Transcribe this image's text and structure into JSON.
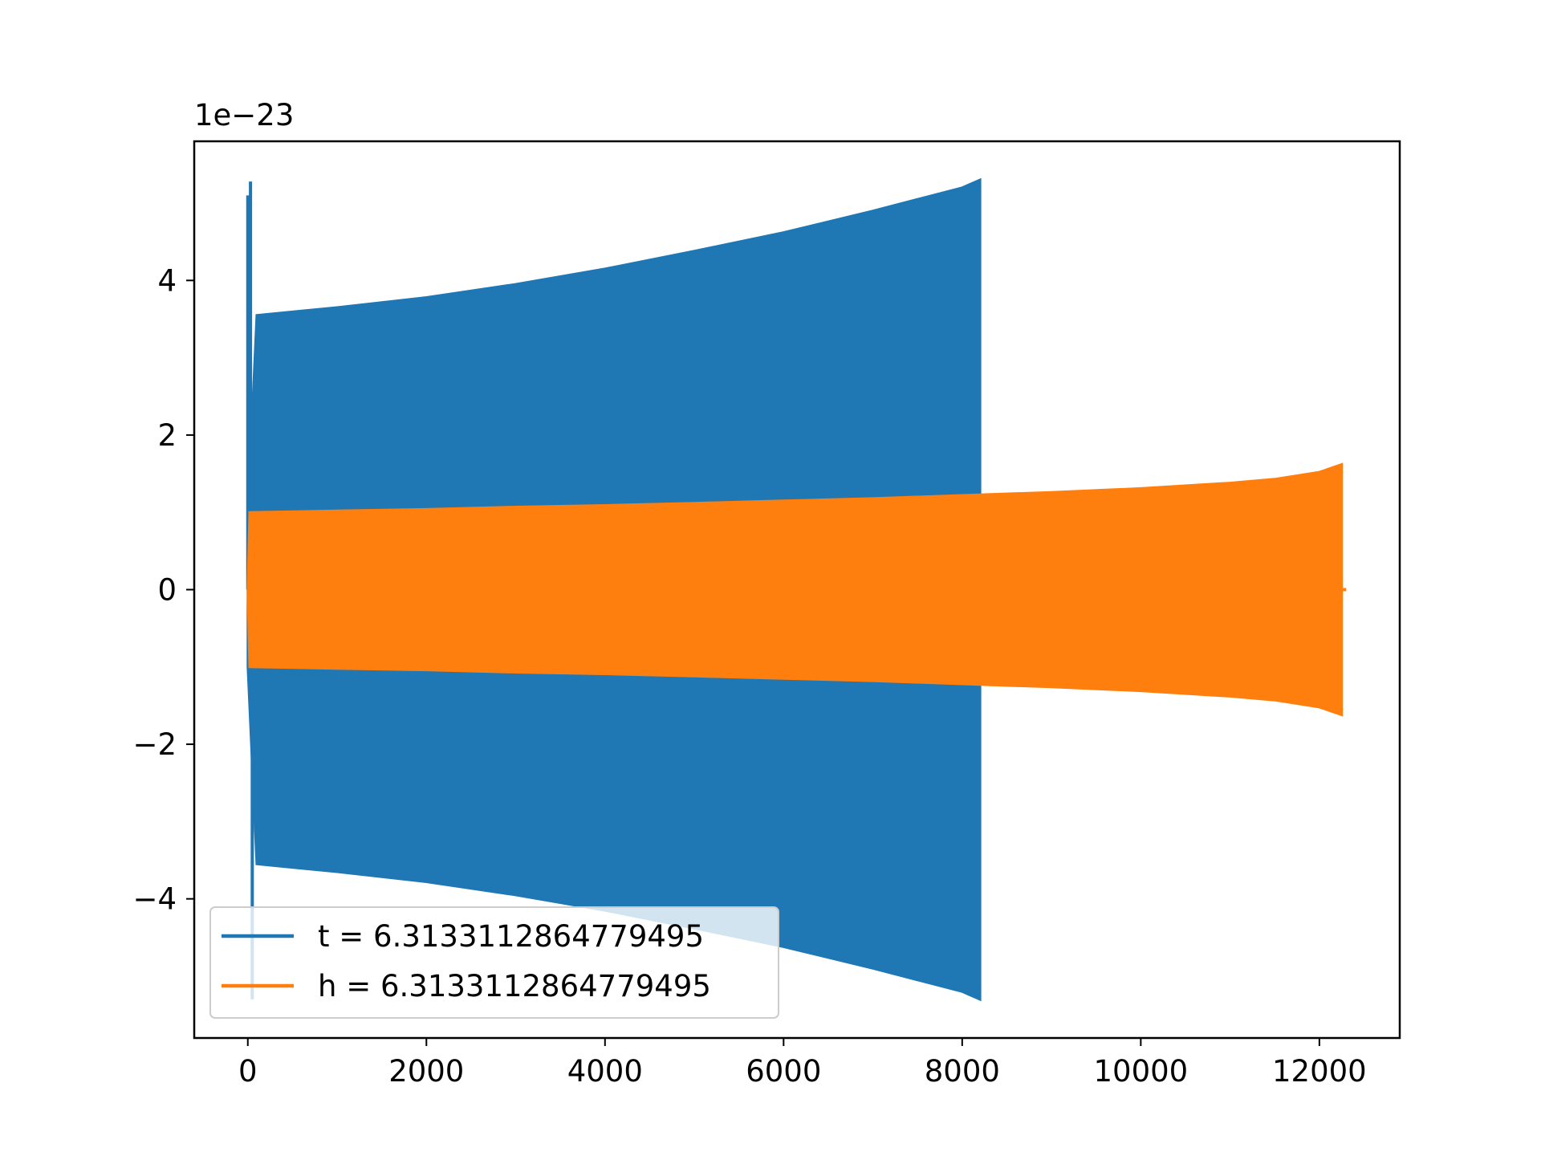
{
  "chart_data": {
    "type": "area",
    "title": "",
    "xlabel": "",
    "ylabel": "",
    "offset_text": "1e−23",
    "xlim": [
      -600,
      12900
    ],
    "ylim": [
      -5.8,
      5.8
    ],
    "xticks": [
      0,
      2000,
      4000,
      6000,
      8000,
      10000,
      12000
    ],
    "xtick_labels": [
      "0",
      "2000",
      "4000",
      "6000",
      "8000",
      "10000",
      "12000"
    ],
    "yticks": [
      -4,
      -2,
      0,
      2,
      4
    ],
    "ytick_labels": [
      "−4",
      "−2",
      "0",
      "2",
      "4"
    ],
    "grid": false,
    "legend_location": "lower left",
    "series": [
      {
        "name": "t = 6.3133112864779495",
        "color": "#1f77b4",
        "envelope": {
          "x": [
            0,
            100,
            1000,
            2000,
            3000,
            4000,
            5000,
            6000,
            7000,
            7500,
            8000,
            8200
          ],
          "upper": [
            1.0,
            3.55,
            3.65,
            3.78,
            3.95,
            4.15,
            4.38,
            4.62,
            4.9,
            5.05,
            5.2,
            5.3
          ],
          "lower": [
            -1.0,
            -3.55,
            -3.65,
            -3.78,
            -3.95,
            -4.15,
            -4.38,
            -4.62,
            -4.9,
            -5.05,
            -5.2,
            -5.3
          ]
        },
        "spikes": [
          {
            "x": 0,
            "y": 5.1
          },
          {
            "x": 30,
            "y": 5.28
          },
          {
            "x": 50,
            "y": -5.3
          },
          {
            "x": 90,
            "y": 3.05
          }
        ]
      },
      {
        "name": "h = 6.3133112864779495",
        "color": "#ff7f0e",
        "envelope": {
          "x": [
            0,
            20,
            1000,
            2000,
            3000,
            4000,
            5000,
            6000,
            7000,
            8000,
            9000,
            10000,
            11000,
            11500,
            12000,
            12250
          ],
          "upper": [
            0.0,
            1.0,
            1.02,
            1.04,
            1.07,
            1.09,
            1.12,
            1.15,
            1.18,
            1.22,
            1.26,
            1.31,
            1.38,
            1.43,
            1.52,
            1.62
          ],
          "lower": [
            0.0,
            -1.0,
            -1.02,
            -1.04,
            -1.07,
            -1.09,
            -1.12,
            -1.15,
            -1.18,
            -1.22,
            -1.26,
            -1.31,
            -1.38,
            -1.43,
            -1.52,
            -1.62
          ]
        },
        "tail": {
          "x_end": 12300,
          "y": 0
        }
      }
    ]
  }
}
